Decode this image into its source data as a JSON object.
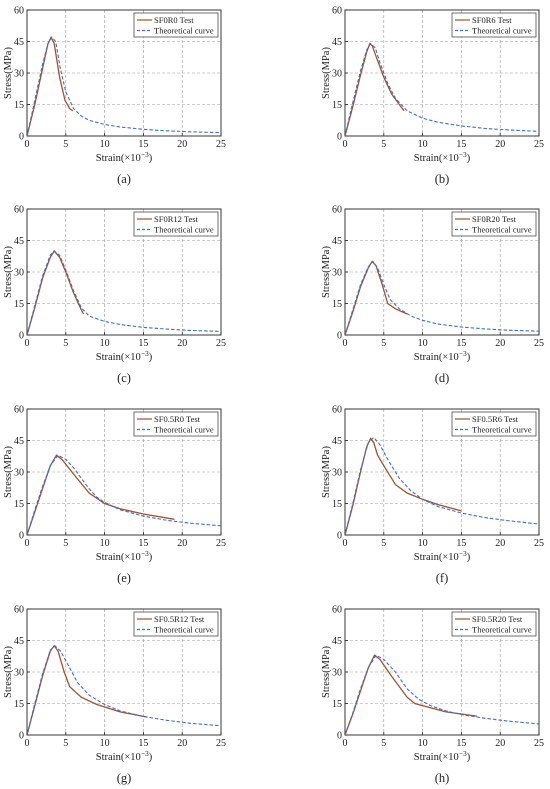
{
  "figure": {
    "axes": {
      "xlabel": "Strain(×10",
      "xlabel_exp": "−3",
      "xlabel_close": ")",
      "ylabel": "Stress(MPa)",
      "xlim": [
        0,
        25
      ],
      "ylim": [
        0,
        60
      ],
      "xticks": [
        "0",
        "5",
        "10",
        "15",
        "20",
        "25"
      ],
      "yticks": [
        "0",
        "15",
        "30",
        "45",
        "60"
      ],
      "grid": true
    },
    "colors": {
      "test": "#a0522d",
      "theory": "#3b6fd1",
      "grid": "#9a9a9a"
    }
  },
  "chart_data": [
    {
      "type": "line",
      "panel_label": "(a)",
      "xlim": [
        0,
        25
      ],
      "ylim": [
        0,
        60
      ],
      "grid": true,
      "legend_position": "top-right",
      "series": [
        {
          "name": "SF0R0 Test",
          "points": [
            [
              0,
              0
            ],
            [
              1,
              15
            ],
            [
              2,
              32
            ],
            [
              2.7,
              44
            ],
            [
              3.1,
              47
            ],
            [
              3.5,
              44
            ],
            [
              4.2,
              28
            ],
            [
              4.9,
              17
            ],
            [
              5.5,
              13
            ],
            [
              5.9,
              12
            ]
          ]
        },
        {
          "name": "Theoretical curve",
          "points": [
            [
              0,
              0
            ],
            [
              1,
              17
            ],
            [
              2,
              34
            ],
            [
              2.7,
              44
            ],
            [
              3.2,
              47
            ],
            [
              3.7,
              45
            ],
            [
              4.3,
              32
            ],
            [
              5,
              21
            ],
            [
              6,
              13
            ],
            [
              7,
              9.5
            ],
            [
              8,
              7.5
            ],
            [
              10,
              5.5
            ],
            [
              12,
              4.3
            ],
            [
              15,
              3.2
            ],
            [
              18,
              2.5
            ],
            [
              21,
              2
            ],
            [
              25,
              1.6
            ]
          ]
        }
      ]
    },
    {
      "type": "line",
      "panel_label": "(b)",
      "xlim": [
        0,
        25
      ],
      "ylim": [
        0,
        60
      ],
      "grid": true,
      "legend_position": "top-right",
      "series": [
        {
          "name": "SF0R6 Test",
          "points": [
            [
              0,
              0
            ],
            [
              1,
              14
            ],
            [
              2,
              29
            ],
            [
              2.8,
              40
            ],
            [
              3.2,
              44
            ],
            [
              3.5,
              43
            ],
            [
              4,
              38
            ],
            [
              5,
              28
            ],
            [
              6,
              20
            ],
            [
              7,
              15
            ],
            [
              7.6,
              12
            ]
          ]
        },
        {
          "name": "Theoretical curve",
          "points": [
            [
              0,
              0
            ],
            [
              1,
              16
            ],
            [
              2,
              31
            ],
            [
              2.8,
              41
            ],
            [
              3.3,
              44
            ],
            [
              3.9,
              42
            ],
            [
              4.5,
              35
            ],
            [
              5.5,
              25
            ],
            [
              6.5,
              18
            ],
            [
              8,
              12
            ],
            [
              10,
              8.5
            ],
            [
              12,
              6.5
            ],
            [
              15,
              4.8
            ],
            [
              18,
              3.6
            ],
            [
              21,
              2.9
            ],
            [
              25,
              2.2
            ]
          ]
        }
      ]
    },
    {
      "type": "line",
      "panel_label": "(c)",
      "xlim": [
        0,
        25
      ],
      "ylim": [
        0,
        60
      ],
      "grid": true,
      "legend_position": "top-right",
      "series": [
        {
          "name": "SF0R12 Test",
          "points": [
            [
              0,
              0
            ],
            [
              1,
              13
            ],
            [
              2,
              27
            ],
            [
              3,
              37
            ],
            [
              3.5,
              40
            ],
            [
              4.2,
              37
            ],
            [
              5,
              30
            ],
            [
              6,
              20
            ],
            [
              7,
              12
            ],
            [
              7.3,
              10
            ]
          ]
        },
        {
          "name": "Theoretical curve",
          "points": [
            [
              0,
              0
            ],
            [
              1,
              14
            ],
            [
              2,
              28
            ],
            [
              3,
              38
            ],
            [
              3.5,
              40
            ],
            [
              4.2,
              38
            ],
            [
              5,
              31
            ],
            [
              6,
              21
            ],
            [
              7,
              13
            ],
            [
              8,
              9
            ],
            [
              10,
              6.5
            ],
            [
              12,
              5
            ],
            [
              15,
              3.6
            ],
            [
              18,
              2.8
            ],
            [
              21,
              2.2
            ],
            [
              25,
              1.7
            ]
          ]
        }
      ]
    },
    {
      "type": "line",
      "panel_label": "(d)",
      "xlim": [
        0,
        25
      ],
      "ylim": [
        0,
        60
      ],
      "grid": true,
      "legend_position": "top-right",
      "series": [
        {
          "name": "SF0R20 Test",
          "points": [
            [
              0,
              0
            ],
            [
              1,
              11
            ],
            [
              2,
              23
            ],
            [
              3,
              32
            ],
            [
              3.5,
              35
            ],
            [
              4,
              33
            ],
            [
              4.8,
              24
            ],
            [
              5.5,
              15
            ],
            [
              6.5,
              12.5
            ],
            [
              8,
              10
            ]
          ]
        },
        {
          "name": "Theoretical curve",
          "points": [
            [
              0,
              0
            ],
            [
              1,
              12
            ],
            [
              2,
              24
            ],
            [
              3,
              32.5
            ],
            [
              3.6,
              35
            ],
            [
              4.2,
              32
            ],
            [
              5,
              24
            ],
            [
              5.8,
              17
            ],
            [
              7,
              12.5
            ],
            [
              8.5,
              9
            ],
            [
              10,
              7
            ],
            [
              12,
              5.2
            ],
            [
              15,
              3.8
            ],
            [
              18,
              2.9
            ],
            [
              21,
              2.3
            ],
            [
              25,
              1.8
            ]
          ]
        }
      ]
    },
    {
      "type": "line",
      "panel_label": "(e)",
      "xlim": [
        0,
        25
      ],
      "ylim": [
        0,
        60
      ],
      "grid": true,
      "legend_position": "top-right",
      "series": [
        {
          "name": "SF0.5R0 Test",
          "points": [
            [
              0,
              0
            ],
            [
              1,
              11
            ],
            [
              2,
              22
            ],
            [
              3,
              33
            ],
            [
              3.8,
              38
            ],
            [
              4.5,
              36
            ],
            [
              6,
              29
            ],
            [
              8,
              20
            ],
            [
              10,
              15
            ],
            [
              12,
              12.5
            ],
            [
              15,
              10
            ],
            [
              19,
              7.5
            ]
          ]
        },
        {
          "name": "Theoretical curve",
          "points": [
            [
              0,
              0
            ],
            [
              1,
              12
            ],
            [
              2,
              23
            ],
            [
              3,
              33
            ],
            [
              4,
              38
            ],
            [
              5,
              36
            ],
            [
              6,
              32
            ],
            [
              7,
              27
            ],
            [
              8,
              22
            ],
            [
              9,
              18
            ],
            [
              10,
              15.5
            ],
            [
              12,
              12
            ],
            [
              15,
              9
            ],
            [
              18,
              7
            ],
            [
              21,
              5.6
            ],
            [
              25,
              4.4
            ]
          ]
        }
      ]
    },
    {
      "type": "line",
      "panel_label": "(f)",
      "xlim": [
        0,
        25
      ],
      "ylim": [
        0,
        60
      ],
      "grid": true,
      "legend_position": "top-right",
      "series": [
        {
          "name": "SF0.5R6 Test",
          "points": [
            [
              0,
              0
            ],
            [
              1,
              14
            ],
            [
              2,
              30
            ],
            [
              2.8,
              42
            ],
            [
              3.3,
              46
            ],
            [
              3.7,
              44
            ],
            [
              4.2,
              38
            ],
            [
              5,
              33
            ],
            [
              6.5,
              24
            ],
            [
              8,
              20
            ],
            [
              10,
              17
            ],
            [
              12,
              14.5
            ],
            [
              15,
              11.5
            ]
          ]
        },
        {
          "name": "Theoretical curve",
          "points": [
            [
              0,
              0
            ],
            [
              1,
              15
            ],
            [
              2,
              31
            ],
            [
              3,
              44
            ],
            [
              3.7,
              46.5
            ],
            [
              4.5,
              43
            ],
            [
              5.5,
              36
            ],
            [
              7,
              27
            ],
            [
              8.5,
              21
            ],
            [
              10,
              17
            ],
            [
              12,
              13.5
            ],
            [
              15,
              10.5
            ],
            [
              18,
              8.3
            ],
            [
              21,
              6.8
            ],
            [
              25,
              5.2
            ]
          ]
        }
      ]
    },
    {
      "type": "line",
      "panel_label": "(g)",
      "xlim": [
        0,
        25
      ],
      "ylim": [
        0,
        60
      ],
      "grid": true,
      "legend_position": "top-right",
      "series": [
        {
          "name": "SF0.5R12 Test",
          "points": [
            [
              0,
              0
            ],
            [
              1,
              14
            ],
            [
              2,
              28
            ],
            [
              3,
              40
            ],
            [
              3.5,
              42.5
            ],
            [
              4,
              40
            ],
            [
              4.8,
              30
            ],
            [
              5.5,
              23
            ],
            [
              7,
              18
            ],
            [
              9,
              14.5
            ],
            [
              12,
              11
            ],
            [
              15.5,
              8.5
            ]
          ]
        },
        {
          "name": "Theoretical curve",
          "points": [
            [
              0,
              0
            ],
            [
              1,
              15
            ],
            [
              2,
              29
            ],
            [
              3,
              40.5
            ],
            [
              3.6,
              42.5
            ],
            [
              4.3,
              40
            ],
            [
              5.2,
              34
            ],
            [
              6.5,
              25
            ],
            [
              8,
              19
            ],
            [
              10,
              14.5
            ],
            [
              12,
              11.5
            ],
            [
              15,
              8.8
            ],
            [
              18,
              7
            ],
            [
              21,
              5.6
            ],
            [
              25,
              4.4
            ]
          ]
        }
      ]
    },
    {
      "type": "line",
      "panel_label": "(h)",
      "xlim": [
        0,
        25
      ],
      "ylim": [
        0,
        60
      ],
      "grid": true,
      "legend_position": "top-right",
      "series": [
        {
          "name": "SF0.5R20 Test",
          "points": [
            [
              0,
              0
            ],
            [
              1,
              10
            ],
            [
              2,
              21
            ],
            [
              3,
              32
            ],
            [
              3.8,
              38
            ],
            [
              4.5,
              36
            ],
            [
              6,
              28
            ],
            [
              8,
              18
            ],
            [
              9,
              15
            ],
            [
              11,
              13
            ],
            [
              13,
              11
            ],
            [
              15,
              10
            ],
            [
              17,
              9
            ]
          ]
        },
        {
          "name": "Theoretical curve",
          "points": [
            [
              0,
              0
            ],
            [
              1,
              10.5
            ],
            [
              2,
              22
            ],
            [
              3,
              32
            ],
            [
              4,
              38
            ],
            [
              5,
              36
            ],
            [
              6.5,
              30
            ],
            [
              8,
              22
            ],
            [
              9.5,
              17
            ],
            [
              11,
              14
            ],
            [
              13,
              11.5
            ],
            [
              15,
              9.7
            ],
            [
              18,
              8
            ],
            [
              21,
              6.6
            ],
            [
              25,
              5.3
            ]
          ]
        }
      ]
    }
  ]
}
